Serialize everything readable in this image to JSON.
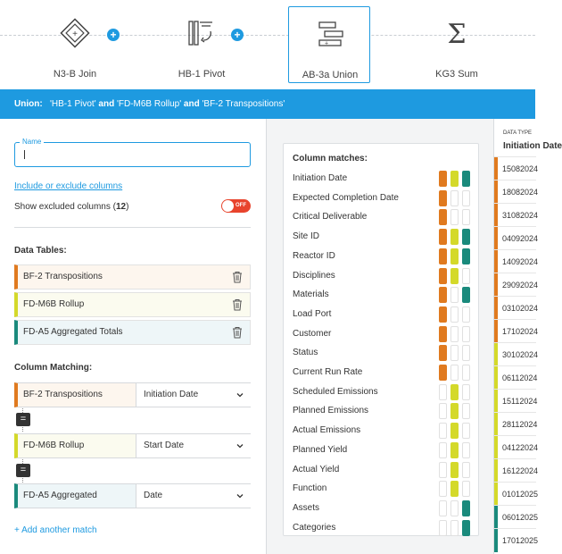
{
  "pipeline": {
    "nodes": [
      {
        "label": "N3-B Join",
        "icon": "join-icon"
      },
      {
        "label": "HB-1 Pivot",
        "icon": "pivot-icon"
      },
      {
        "label": "AB-3a Union",
        "icon": "union-icon"
      },
      {
        "label": "KG3 Sum",
        "icon": "sum-icon"
      }
    ],
    "plus": "+"
  },
  "header": {
    "prefix": "Union:",
    "part1": "'HB-1 Pivot'",
    "and1": "and",
    "part2": "'FD-M6B Rollup'",
    "and2": "and",
    "part3": "'BF-2 Transpositions'"
  },
  "left": {
    "name_label": "Name",
    "include_link": "Include or exclude columns",
    "show_excluded_label": "Show excluded columns (",
    "show_excluded_count": "12",
    "show_excluded_close": ")",
    "toggle_label": "OFF",
    "data_tables_heading": "Data Tables:",
    "data_tables": [
      {
        "name": "BF-2 Transpositions"
      },
      {
        "name": "FD-M6B Rollup"
      },
      {
        "name": "FD-A5 Aggregated Totals"
      }
    ],
    "column_matching_heading": "Column Matching:",
    "matches": [
      {
        "table": "BF-2 Transpositions",
        "column": "Initiation Date"
      },
      {
        "table": "FD-M6B Rollup",
        "column": "Start Date"
      },
      {
        "table": "FD-A5 Aggregated",
        "column": "Date"
      }
    ],
    "equals": "=",
    "add_match": "+ Add another match"
  },
  "colors": {
    "orange": "#e07a1f",
    "lime": "#d4d92a",
    "teal": "#1a8a7c",
    "accent": "#1e9ae0"
  },
  "column_matches": {
    "title": "Column matches:",
    "rows": [
      {
        "name": "Initiation Date",
        "m": [
          1,
          1,
          1
        ]
      },
      {
        "name": "Expected Completion Date",
        "m": [
          1,
          0,
          0
        ]
      },
      {
        "name": "Critical Deliverable",
        "m": [
          1,
          0,
          0
        ]
      },
      {
        "name": "Site ID",
        "m": [
          1,
          1,
          1
        ]
      },
      {
        "name": "Reactor ID",
        "m": [
          1,
          1,
          1
        ]
      },
      {
        "name": "Disciplines",
        "m": [
          1,
          1,
          0
        ]
      },
      {
        "name": "Materials",
        "m": [
          1,
          0,
          1
        ]
      },
      {
        "name": "Load Port",
        "m": [
          1,
          0,
          0
        ]
      },
      {
        "name": "Customer",
        "m": [
          1,
          0,
          0
        ]
      },
      {
        "name": "Status",
        "m": [
          1,
          0,
          0
        ]
      },
      {
        "name": "Current Run Rate",
        "m": [
          1,
          0,
          0
        ]
      },
      {
        "name": "Scheduled Emissions",
        "m": [
          0,
          1,
          0
        ]
      },
      {
        "name": "Planned Emissions",
        "m": [
          0,
          1,
          0
        ]
      },
      {
        "name": "Actual Emissions",
        "m": [
          0,
          1,
          0
        ]
      },
      {
        "name": "Planned Yield",
        "m": [
          0,
          1,
          0
        ]
      },
      {
        "name": "Actual Yield",
        "m": [
          0,
          1,
          0
        ]
      },
      {
        "name": "Function",
        "m": [
          0,
          1,
          0
        ]
      },
      {
        "name": "Assets",
        "m": [
          0,
          0,
          1
        ]
      },
      {
        "name": "Categories",
        "m": [
          0,
          0,
          1
        ]
      }
    ]
  },
  "preview": {
    "header_small": "DATA TYPE",
    "header": "Initiation Date",
    "cells": [
      {
        "v": "15082024",
        "c": "orange"
      },
      {
        "v": "18082024",
        "c": "orange"
      },
      {
        "v": "31082024",
        "c": "orange"
      },
      {
        "v": "04092024",
        "c": "orange"
      },
      {
        "v": "14092024",
        "c": "orange"
      },
      {
        "v": "29092024",
        "c": "orange"
      },
      {
        "v": "03102024",
        "c": "orange"
      },
      {
        "v": "17102024",
        "c": "orange"
      },
      {
        "v": "30102024",
        "c": "lime"
      },
      {
        "v": "06112024",
        "c": "lime"
      },
      {
        "v": "15112024",
        "c": "lime"
      },
      {
        "v": "28112024",
        "c": "lime"
      },
      {
        "v": "04122024",
        "c": "lime"
      },
      {
        "v": "16122024",
        "c": "lime"
      },
      {
        "v": "01012025",
        "c": "lime"
      },
      {
        "v": "06012025",
        "c": "teal"
      },
      {
        "v": "17012025",
        "c": "teal"
      }
    ]
  }
}
